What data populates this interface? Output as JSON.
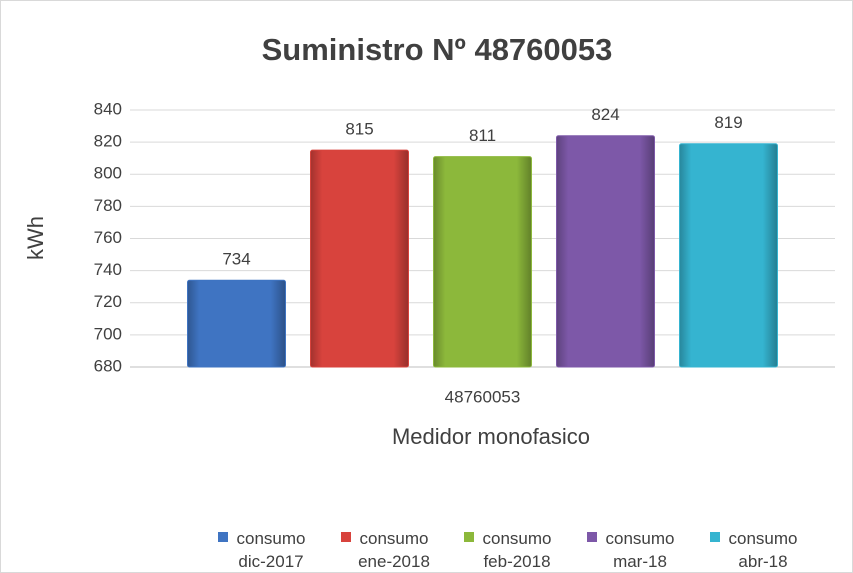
{
  "chart_data": {
    "type": "bar",
    "title": "Suministro Nº 48760053",
    "categories": [
      "48760053"
    ],
    "x_label": "Medidor monofasico",
    "y_label": "kWh",
    "series": [
      {
        "name": "consumo dic-2017",
        "color": "#3f74c2",
        "values": [
          734
        ]
      },
      {
        "name": "consumo ene-2018",
        "color": "#d8433d",
        "values": [
          815
        ]
      },
      {
        "name": "consumo feb-2018",
        "color": "#8cb83b",
        "values": [
          811
        ]
      },
      {
        "name": "consumo mar-18",
        "color": "#7d58a8",
        "values": [
          824
        ]
      },
      {
        "name": "consumo abr-18",
        "color": "#35b4d0",
        "values": [
          819
        ]
      }
    ],
    "ylim": [
      680,
      840
    ],
    "yticks": [
      680,
      700,
      720,
      740,
      760,
      780,
      800,
      820,
      840
    ],
    "grid": true,
    "legend": "bottom"
  }
}
